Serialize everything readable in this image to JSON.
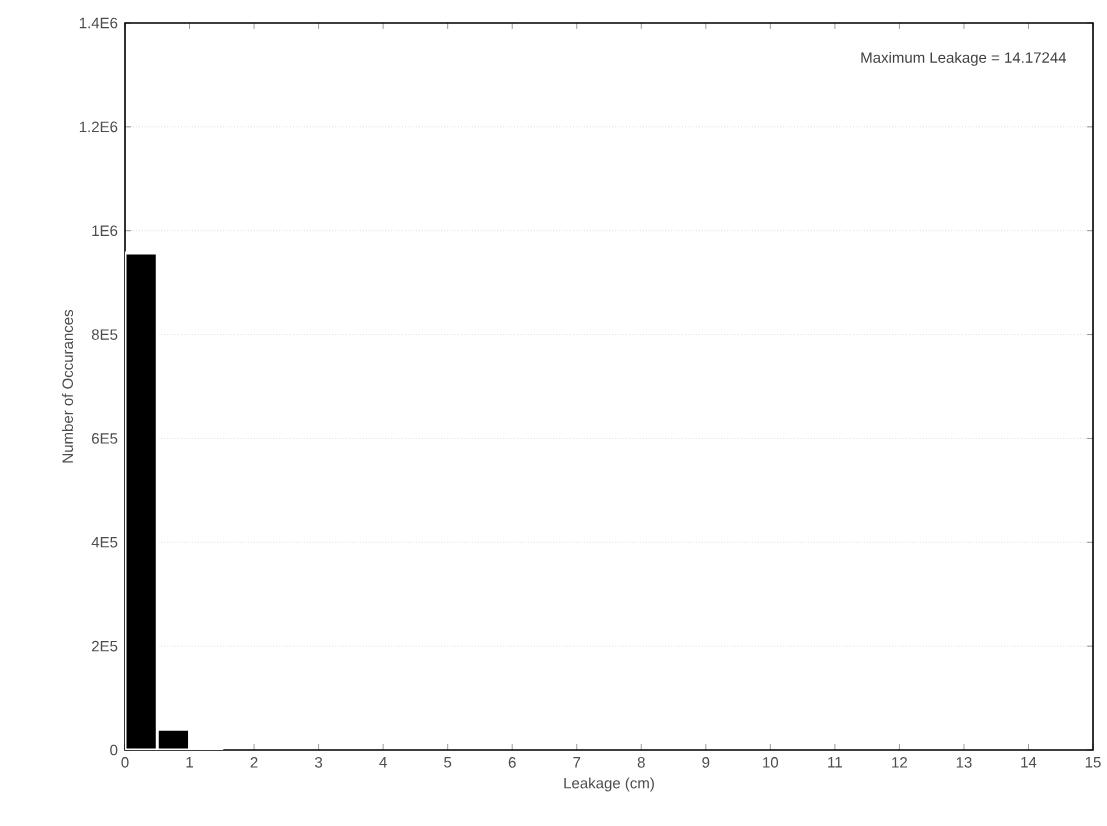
{
  "chart_data": {
    "type": "histogram",
    "xlabel": "Leakage (cm)",
    "ylabel": "Number of Occurances",
    "annotations": [
      "Maximum Leakage = 14.17244"
    ],
    "bins": [
      0,
      0.5,
      1,
      1.5
    ],
    "values": [
      957000,
      40000,
      4000
    ],
    "color": "#000000",
    "xlim": [
      0,
      15
    ],
    "xticks": [
      0,
      1,
      2,
      3,
      4,
      5,
      6,
      7,
      8,
      9,
      10,
      11,
      12,
      13,
      14,
      15
    ],
    "ylim": [
      0,
      1400000
    ],
    "yticks": [
      {
        "value": 0,
        "label": "0"
      },
      {
        "value": 200000,
        "label": "2E5"
      },
      {
        "value": 400000,
        "label": "4E5"
      },
      {
        "value": 600000,
        "label": "6E5"
      },
      {
        "value": 800000,
        "label": "8E5"
      },
      {
        "value": 1000000,
        "label": "1E6"
      },
      {
        "value": 1200000,
        "label": "1.2E6"
      },
      {
        "value": 1400000,
        "label": "1.4E6"
      }
    ],
    "grid": "y"
  }
}
